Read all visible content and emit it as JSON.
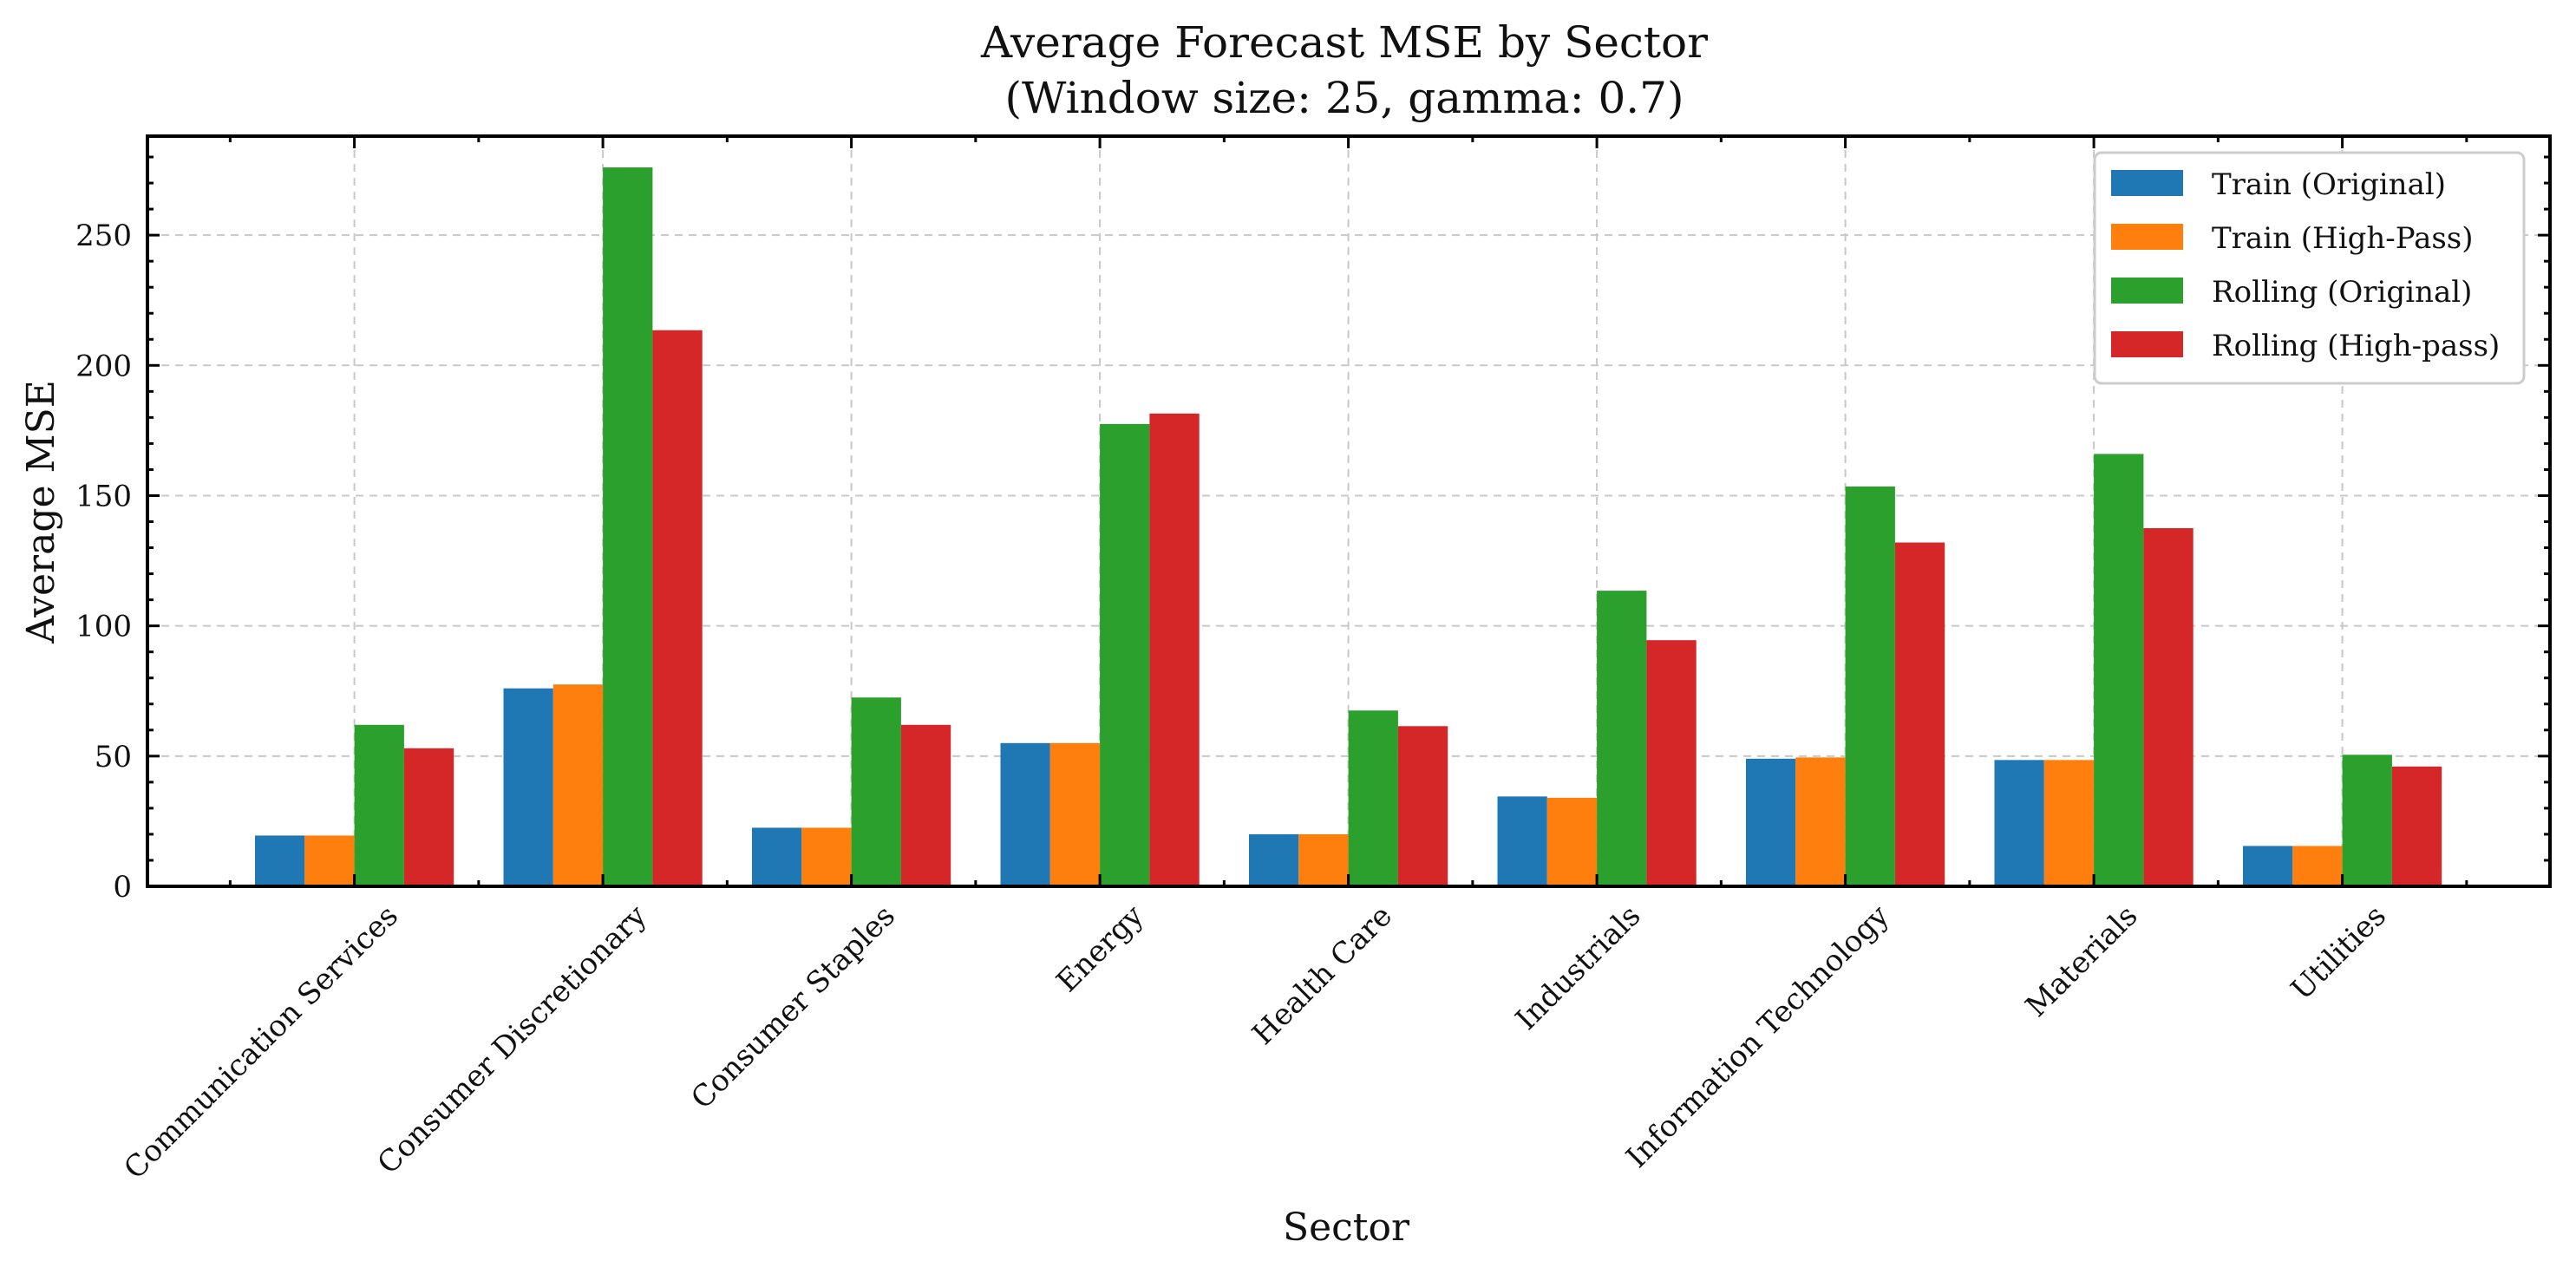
{
  "chart_data": {
    "type": "bar",
    "title": "Average Forecast MSE by Sector",
    "subtitle": "(Window size: 25, gamma: 0.7)",
    "xlabel": "Sector",
    "ylabel": "Average MSE",
    "ylim": [
      0,
      288
    ],
    "yticks": [
      0,
      50,
      100,
      150,
      200,
      250
    ],
    "grid": true,
    "legend_position": "top-right",
    "categories": [
      "Communication Services",
      "Consumer Discretionary",
      "Consumer Staples",
      "Energy",
      "Health Care",
      "Industrials",
      "Information Technology",
      "Materials",
      "Utilities"
    ],
    "series": [
      {
        "name": "Train (Original)",
        "color": "#1f77b4",
        "values": [
          19.5,
          76,
          22.5,
          55,
          20,
          34.5,
          49,
          48.5,
          15.5
        ]
      },
      {
        "name": "Train (High-Pass)",
        "color": "#ff7f0e",
        "values": [
          19.5,
          77.5,
          22.5,
          55,
          20,
          34,
          49.5,
          48.5,
          15.5
        ]
      },
      {
        "name": "Rolling (Original)",
        "color": "#2ca02c",
        "values": [
          62,
          276,
          72.5,
          177.5,
          67.5,
          113.5,
          153.5,
          166,
          50.5
        ]
      },
      {
        "name": "Rolling (High-pass)",
        "color": "#d62728",
        "values": [
          53,
          213.5,
          62,
          181.5,
          61.5,
          94.5,
          132,
          137.5,
          46
        ]
      }
    ]
  }
}
